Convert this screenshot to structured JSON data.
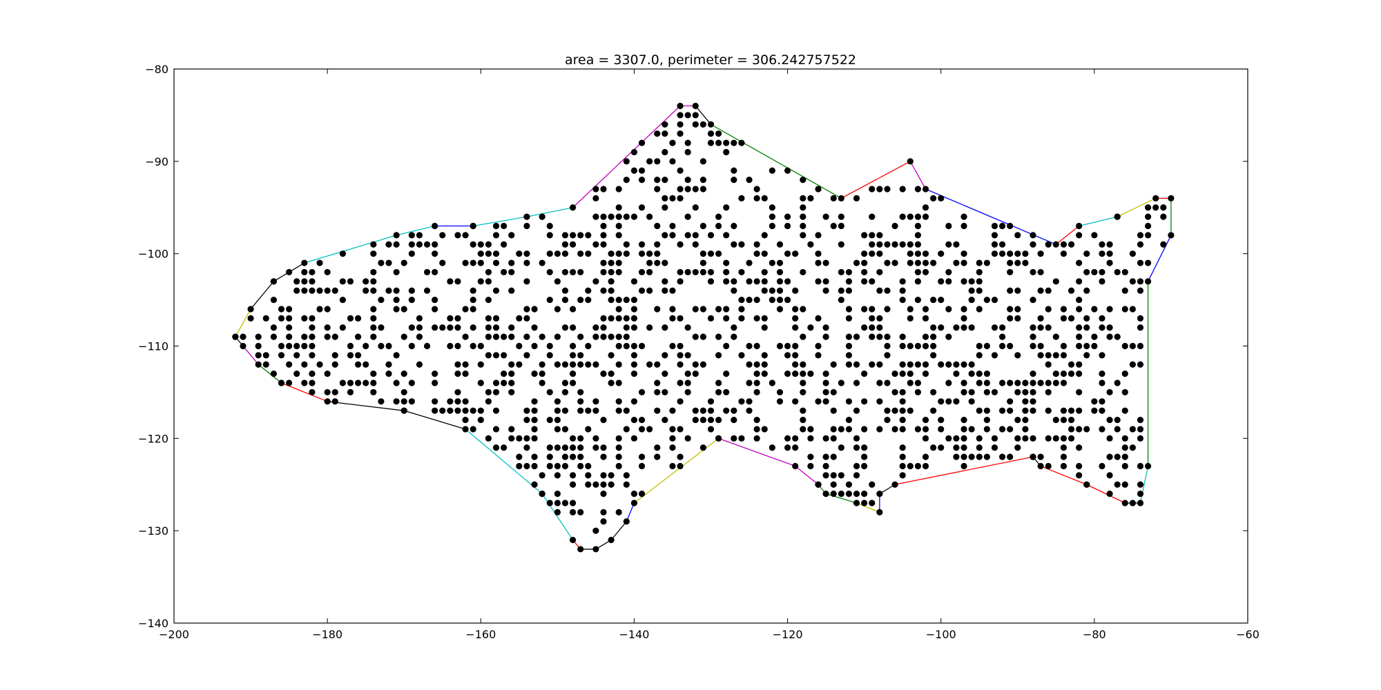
{
  "chart_data": {
    "type": "scatter",
    "title": "area = 3307.0, perimeter = 306.242757522",
    "xlabel": "",
    "ylabel": "",
    "xlim": [
      -200,
      -60
    ],
    "ylim": [
      -140,
      -80
    ],
    "grid": false,
    "x_ticks": [
      -200,
      -180,
      -160,
      -140,
      -120,
      -100,
      -80,
      -60
    ],
    "y_ticks": [
      -80,
      -90,
      -100,
      -110,
      -120,
      -130,
      -140
    ],
    "point_color": "#000000",
    "edge_palette": [
      "#000000",
      "#ff0000",
      "#008000",
      "#0000ff",
      "#00bfbf",
      "#bf00bf",
      "#bfbf00"
    ],
    "hull": [
      [
        -192,
        -109
      ],
      [
        -190,
        -106
      ],
      [
        -187,
        -103
      ],
      [
        -183,
        -101
      ],
      [
        -171,
        -98
      ],
      [
        -166,
        -97
      ],
      [
        -161,
        -97
      ],
      [
        -154,
        -96
      ],
      [
        -148,
        -95
      ],
      [
        -134,
        -84
      ],
      [
        -132,
        -84
      ],
      [
        -130,
        -86
      ],
      [
        -113,
        -94
      ],
      [
        -104,
        -90
      ],
      [
        -102,
        -93
      ],
      [
        -85,
        -99
      ],
      [
        -82,
        -97
      ],
      [
        -77,
        -96
      ],
      [
        -72,
        -94
      ],
      [
        -70,
        -94
      ],
      [
        -70,
        -98
      ],
      [
        -73,
        -103
      ],
      [
        -73,
        -123
      ],
      [
        -74,
        -127
      ],
      [
        -76,
        -127
      ],
      [
        -81,
        -125
      ],
      [
        -87,
        -123
      ],
      [
        -88,
        -122
      ],
      [
        -106,
        -125
      ],
      [
        -108,
        -126
      ],
      [
        -108,
        -128
      ],
      [
        -111,
        -127
      ],
      [
        -115,
        -126
      ],
      [
        -116,
        -125
      ],
      [
        -119,
        -123
      ],
      [
        -129,
        -120
      ],
      [
        -140,
        -127
      ],
      [
        -141,
        -129
      ],
      [
        -143,
        -131
      ],
      [
        -145,
        -132
      ],
      [
        -147,
        -132
      ],
      [
        -148,
        -131
      ],
      [
        -152,
        -126
      ],
      [
        -162,
        -119
      ],
      [
        -170,
        -117
      ],
      [
        -180,
        -116
      ],
      [
        -186,
        -114
      ],
      [
        -189,
        -112
      ],
      [
        -191,
        -110
      ]
    ],
    "edge_colors": [
      "#bfbf00",
      "#000000",
      "#000000",
      "#00bfbf",
      "#00bfbf",
      "#0000ff",
      "#00bfbf",
      "#00bfbf",
      "#bf00bf",
      "#bf00bf",
      "#000000",
      "#008000",
      "#ff0000",
      "#bf00bf",
      "#0000ff",
      "#ff0000",
      "#00bfbf",
      "#bfbf00",
      "#ff0000",
      "#008000",
      "#0000ff",
      "#008000",
      "#00bfbf",
      "#000000",
      "#ff0000",
      "#ff0000",
      "#000000",
      "#ff0000",
      "#000000",
      "#0000ff",
      "#bfbf00",
      "#008000",
      "#008000",
      "#bf00bf",
      "#bf00bf",
      "#bfbf00",
      "#0000ff",
      "#000000",
      "#000000",
      "#000000",
      "#ff0000",
      "#00bfbf",
      "#00bfbf",
      "#000000",
      "#000000",
      "#ff0000",
      "#008000",
      "#bf00bf",
      "#000000"
    ],
    "interior_point_step": 1,
    "interior_point_fraction": 0.38,
    "interior_point_seed": 7
  }
}
